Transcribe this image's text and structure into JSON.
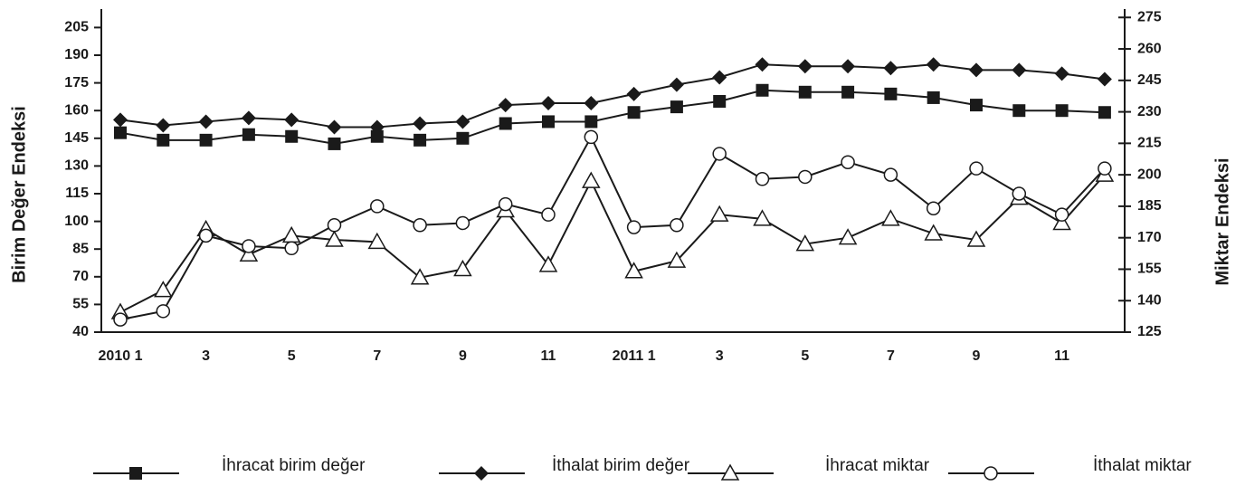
{
  "chart_data": {
    "type": "line",
    "categories": [
      "2010 1",
      null,
      "3",
      null,
      "5",
      null,
      "7",
      null,
      "9",
      null,
      "11",
      null,
      "2011 1",
      null,
      "3",
      null,
      "5",
      null,
      "7",
      null,
      "9",
      null,
      "11",
      null
    ],
    "ylabel": "Birim Değer Endeksi",
    "y2label": "Miktar Endeksi",
    "ylim": [
      40,
      215
    ],
    "yticks": [
      40,
      55,
      70,
      85,
      100,
      115,
      130,
      145,
      160,
      175,
      190,
      205
    ],
    "y2lim": [
      125,
      279
    ],
    "y2ticks": [
      125,
      140,
      155,
      170,
      185,
      200,
      215,
      230,
      245,
      260,
      275
    ],
    "series": [
      {
        "name": "İhracat birim değer",
        "color": "#1a1a1a",
        "marker": "square",
        "values": [
          148,
          144,
          144,
          147,
          146,
          142,
          146,
          144,
          145,
          153,
          154,
          154,
          159,
          162,
          165,
          171,
          170,
          170,
          169,
          167,
          163,
          160,
          160,
          159
        ]
      },
      {
        "name": "İthalat birim değer",
        "color": "#1a1a1a",
        "marker": "diamond",
        "values": [
          155,
          152,
          154,
          156,
          155,
          151,
          151,
          153,
          154,
          163,
          164,
          164,
          169,
          174,
          178,
          185,
          184,
          184,
          183,
          185,
          182,
          182,
          180,
          177
        ]
      },
      {
        "name": "İhracat miktar",
        "color": "#1a1a1a",
        "marker": "triangle",
        "axis": "y2",
        "values": [
          134.5,
          145,
          174,
          162,
          171,
          169,
          168,
          151,
          155,
          183,
          157,
          197,
          154,
          159,
          181,
          179,
          167,
          170,
          179,
          172,
          169,
          189,
          177,
          200
        ]
      },
      {
        "name": "İthalat miktar",
        "color": "#1a1a1a",
        "marker": "circle",
        "axis": "y2",
        "values": [
          131,
          135,
          171,
          166,
          165,
          176,
          185,
          176,
          177,
          186,
          181,
          218,
          175,
          176,
          210,
          198,
          199,
          206,
          200,
          184,
          203,
          191,
          181,
          203
        ]
      }
    ]
  }
}
